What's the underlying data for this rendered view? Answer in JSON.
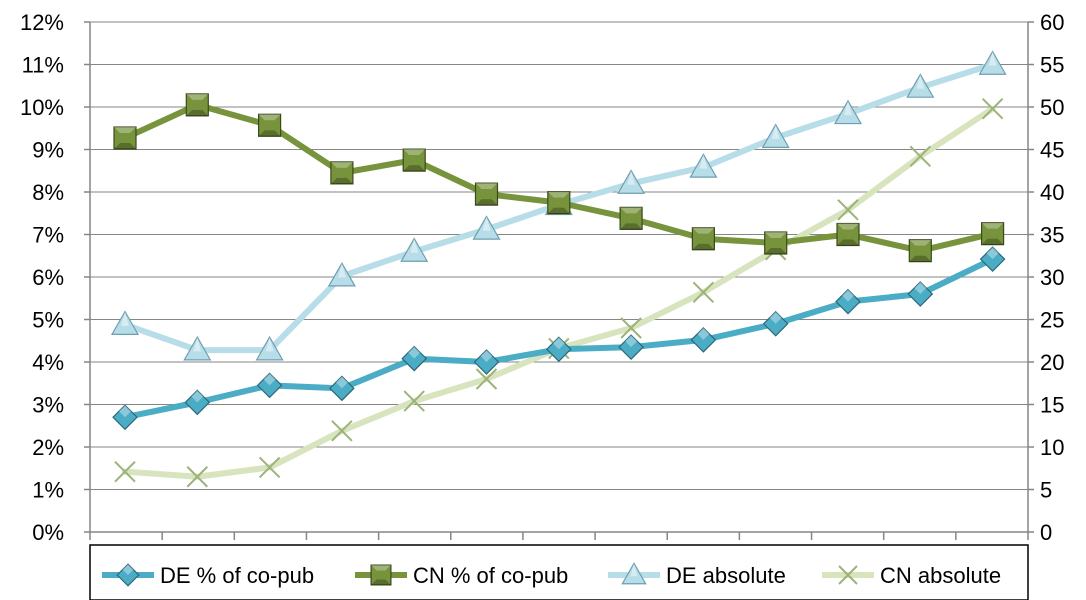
{
  "chart_data": {
    "type": "line",
    "title": "",
    "xlabel": "",
    "ylabel": "",
    "ylim": [
      0,
      12
    ],
    "y2lim": [
      0,
      60
    ],
    "y_ticks": [
      "0%",
      "1%",
      "2%",
      "3%",
      "4%",
      "5%",
      "6%",
      "7%",
      "8%",
      "9%",
      "10%",
      "11%",
      "12%"
    ],
    "y2_ticks": [
      "0",
      "5",
      "10",
      "15",
      "20",
      "25",
      "30",
      "35",
      "40",
      "45",
      "50",
      "55",
      "60"
    ],
    "x": [
      1,
      2,
      3,
      4,
      5,
      6,
      7,
      8,
      9,
      10,
      11,
      12,
      13
    ],
    "grid": "horizontal",
    "legend_position": "bottom",
    "series": [
      {
        "name": "DE % of co-pub",
        "axis": "left",
        "unit": "%",
        "color": "#4bacc6",
        "marker": "diamond",
        "values": [
          2.7,
          3.05,
          3.45,
          3.38,
          4.08,
          4.0,
          4.3,
          4.35,
          4.52,
          4.9,
          5.42,
          5.6,
          6.42
        ]
      },
      {
        "name": "CN % of co-pub",
        "axis": "left",
        "unit": "%",
        "color": "#77933c",
        "marker": "square",
        "values": [
          9.27,
          10.05,
          9.57,
          8.45,
          8.75,
          7.95,
          7.75,
          7.38,
          6.9,
          6.8,
          7.0,
          6.62,
          7.02
        ]
      },
      {
        "name": "DE absolute",
        "axis": "right",
        "color": "#b7dde8",
        "marker": "triangle",
        "values": [
          24.4,
          21.4,
          21.4,
          30.1,
          33.0,
          35.6,
          38.5,
          41.0,
          42.9,
          46.4,
          49.2,
          52.3,
          55.0
        ]
      },
      {
        "name": "CN absolute",
        "axis": "right",
        "color": "#d7e4bd",
        "marker": "x",
        "values": [
          7.1,
          6.5,
          7.6,
          11.9,
          15.4,
          18.0,
          21.6,
          24.0,
          28.2,
          33.2,
          37.9,
          44.2,
          49.8
        ]
      }
    ]
  }
}
